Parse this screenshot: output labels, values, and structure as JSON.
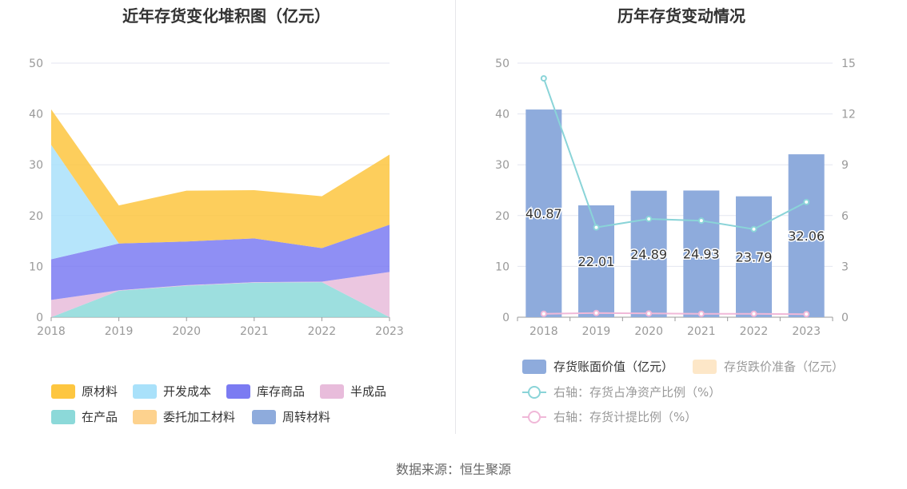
{
  "source_label": "数据来源：恒生聚源",
  "chart_data": [
    {
      "type": "area",
      "title": "近年存货变化堆积图（亿元）",
      "x": [
        "2018",
        "2019",
        "2020",
        "2021",
        "2022",
        "2023"
      ],
      "ylim": [
        0,
        50
      ],
      "yticks": [
        0,
        10,
        20,
        30,
        40,
        50
      ],
      "grid": true,
      "legend_position": "bottom",
      "series": [
        {
          "name": "原材料",
          "color": "#fdc640",
          "values": [
            7.0,
            7.5,
            10.0,
            9.5,
            10.2,
            13.8
          ]
        },
        {
          "name": "开发成本",
          "color": "#a9e1fa",
          "values": [
            22.5,
            0.0,
            0.0,
            0.0,
            0.0,
            0.0
          ]
        },
        {
          "name": "库存商品",
          "color": "#7b7bf2",
          "values": [
            8.0,
            9.2,
            8.6,
            8.6,
            6.6,
            9.3
          ]
        },
        {
          "name": "半成品",
          "color": "#e8bcdb",
          "values": [
            3.4,
            0.1,
            0.1,
            0.1,
            0.1,
            8.9
          ]
        },
        {
          "name": "在产品",
          "color": "#8cd9d9",
          "values": [
            0.0,
            5.2,
            6.2,
            6.8,
            6.9,
            0.0
          ]
        },
        {
          "name": "委托加工材料",
          "color": "#fdd28e",
          "values": [
            0,
            0,
            0,
            0,
            0,
            0
          ]
        },
        {
          "name": "周转材料",
          "color": "#8eabdc",
          "values": [
            0,
            0,
            0,
            0,
            0,
            0
          ]
        }
      ]
    },
    {
      "type": "bar",
      "title": "历年存货变动情况",
      "categories": [
        "2018",
        "2019",
        "2020",
        "2021",
        "2022",
        "2023"
      ],
      "ylim": [
        0,
        50
      ],
      "yticks": [
        0,
        10,
        20,
        30,
        40,
        50
      ],
      "y2lim": [
        0,
        15
      ],
      "y2ticks": [
        0,
        3,
        6,
        9,
        12,
        15
      ],
      "grid": true,
      "legend_position": "bottom",
      "series": [
        {
          "name": "存货账面价值（亿元）",
          "axis": "left",
          "kind": "bar",
          "color": "#8eabdc",
          "values": [
            40.87,
            22.01,
            24.89,
            24.93,
            23.79,
            32.06
          ],
          "labels": [
            "40.87",
            "22.01",
            "24.89",
            "24.93",
            "23.79",
            "32.06"
          ]
        },
        {
          "name": "存货跌价准备（亿元）",
          "axis": "left",
          "kind": "bar",
          "color": "#fde7c8",
          "values": [
            0,
            0,
            0,
            0,
            0,
            0
          ]
        },
        {
          "name": "右轴：存货占净资产比例（%）",
          "axis": "right",
          "kind": "line",
          "color": "#8ad4d8",
          "values": [
            14.1,
            5.3,
            5.8,
            5.7,
            5.2,
            6.8
          ]
        },
        {
          "name": "右轴：存货计提比例（%）",
          "axis": "right",
          "kind": "line",
          "color": "#f0b8d8",
          "values": [
            0.2,
            0.25,
            0.22,
            0.2,
            0.2,
            0.18
          ]
        }
      ]
    }
  ]
}
